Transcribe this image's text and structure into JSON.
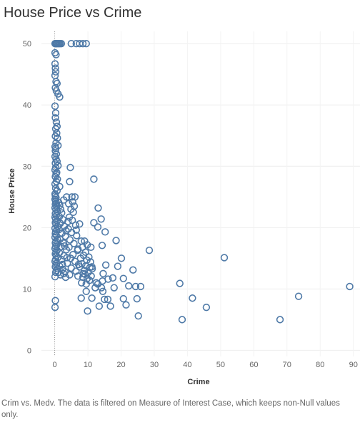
{
  "chart_data": {
    "type": "scatter",
    "title": "House Price vs Crime",
    "xlabel": "Crime",
    "ylabel": "House Price",
    "xlim": [
      -4,
      92
    ],
    "ylim": [
      -1,
      52
    ],
    "x_ticks": [
      0,
      10,
      20,
      30,
      40,
      50,
      60,
      70,
      80,
      90
    ],
    "y_ticks": [
      0,
      10,
      20,
      30,
      40,
      50
    ],
    "grid": true,
    "zero_line_x": true,
    "marker": "hollow-circle",
    "color": "#4E79A7",
    "points": [
      [
        0.1,
        50
      ],
      [
        0.3,
        50
      ],
      [
        0.5,
        50
      ],
      [
        0.7,
        50
      ],
      [
        1.0,
        50
      ],
      [
        1.3,
        50
      ],
      [
        1.6,
        50
      ],
      [
        2.0,
        50
      ],
      [
        5.0,
        50
      ],
      [
        6.5,
        50
      ],
      [
        7.5,
        50
      ],
      [
        8.5,
        50
      ],
      [
        9.5,
        50
      ],
      [
        0.1,
        48.5
      ],
      [
        0.4,
        48.2
      ],
      [
        0.1,
        46.7
      ],
      [
        0.2,
        46.0
      ],
      [
        0.3,
        45.4
      ],
      [
        0.1,
        44.8
      ],
      [
        0.4,
        43.8
      ],
      [
        0.7,
        43.5
      ],
      [
        0.2,
        42.8
      ],
      [
        0.5,
        42.3
      ],
      [
        1.0,
        41.8
      ],
      [
        1.5,
        41.3
      ],
      [
        0.1,
        39.8
      ],
      [
        0.3,
        38.7
      ],
      [
        0.2,
        37.9
      ],
      [
        0.5,
        37.2
      ],
      [
        0.7,
        36.5
      ],
      [
        0.3,
        36.1
      ],
      [
        0.6,
        35.4
      ],
      [
        0.2,
        34.9
      ],
      [
        0.8,
        34.6
      ],
      [
        0.4,
        33.8
      ],
      [
        1.0,
        33.4
      ],
      [
        0.1,
        33.2
      ],
      [
        0.3,
        32.9
      ],
      [
        0.2,
        32.5
      ],
      [
        0.5,
        32.0
      ],
      [
        0.1,
        31.6
      ],
      [
        0.4,
        31.2
      ],
      [
        0.7,
        30.8
      ],
      [
        0.2,
        30.5
      ],
      [
        1.0,
        30.1
      ],
      [
        0.3,
        29.8
      ],
      [
        0.1,
        29.4
      ],
      [
        0.6,
        29.0
      ],
      [
        0.4,
        28.7
      ],
      [
        0.2,
        28.3
      ],
      [
        0.8,
        27.9
      ],
      [
        0.5,
        27.5
      ],
      [
        0.1,
        27.1
      ],
      [
        1.5,
        26.7
      ],
      [
        0.3,
        26.4
      ],
      [
        0.7,
        26.0
      ],
      [
        4.7,
        29.8
      ],
      [
        4.5,
        27.5
      ],
      [
        11.8,
        27.9
      ],
      [
        5.2,
        25.0
      ],
      [
        6.1,
        25.0
      ],
      [
        3.6,
        25.0
      ],
      [
        2.7,
        24.5
      ],
      [
        0.1,
        25.5
      ],
      [
        0.2,
        25.2
      ],
      [
        0.4,
        24.9
      ],
      [
        0.1,
        24.6
      ],
      [
        0.3,
        24.3
      ],
      [
        0.5,
        24.0
      ],
      [
        0.2,
        23.8
      ],
      [
        0.6,
        23.5
      ],
      [
        0.1,
        23.2
      ],
      [
        0.4,
        22.9
      ],
      [
        0.8,
        22.6
      ],
      [
        0.2,
        22.3
      ],
      [
        0.5,
        22.0
      ],
      [
        0.1,
        21.7
      ],
      [
        0.3,
        21.4
      ],
      [
        0.7,
        21.1
      ],
      [
        0.2,
        20.8
      ],
      [
        0.4,
        20.5
      ],
      [
        0.9,
        20.2
      ],
      [
        0.1,
        19.9
      ],
      [
        0.6,
        19.6
      ],
      [
        0.3,
        19.3
      ],
      [
        0.2,
        19.0
      ],
      [
        0.5,
        18.7
      ],
      [
        0.1,
        18.4
      ],
      [
        0.8,
        18.1
      ],
      [
        0.4,
        17.8
      ],
      [
        0.2,
        17.5
      ],
      [
        0.6,
        17.2
      ],
      [
        0.3,
        16.9
      ],
      [
        0.1,
        16.6
      ],
      [
        0.7,
        16.3
      ],
      [
        0.4,
        16.0
      ],
      [
        0.2,
        15.7
      ],
      [
        0.5,
        15.4
      ],
      [
        0.9,
        15.1
      ],
      [
        0.3,
        14.8
      ],
      [
        0.1,
        14.5
      ],
      [
        0.6,
        14.2
      ],
      [
        0.4,
        13.9
      ],
      [
        0.2,
        13.6
      ],
      [
        0.8,
        13.3
      ],
      [
        0.5,
        13.0
      ],
      [
        1.1,
        12.7
      ],
      [
        1.2,
        24.1
      ],
      [
        1.5,
        23.6
      ],
      [
        1.8,
        23.0
      ],
      [
        2.1,
        22.4
      ],
      [
        1.4,
        21.8
      ],
      [
        2.5,
        21.3
      ],
      [
        1.7,
        20.7
      ],
      [
        2.9,
        20.2
      ],
      [
        1.3,
        19.7
      ],
      [
        2.2,
        19.1
      ],
      [
        3.2,
        18.6
      ],
      [
        1.6,
        18.1
      ],
      [
        2.6,
        17.5
      ],
      [
        1.9,
        16.9
      ],
      [
        3.5,
        16.4
      ],
      [
        1.4,
        15.9
      ],
      [
        2.8,
        15.4
      ],
      [
        2.0,
        14.8
      ],
      [
        3.8,
        14.2
      ],
      [
        1.5,
        13.7
      ],
      [
        2.4,
        13.2
      ],
      [
        3.1,
        12.8
      ],
      [
        1.8,
        12.3
      ],
      [
        4.2,
        23.9
      ],
      [
        4.9,
        23.0
      ],
      [
        5.6,
        22.5
      ],
      [
        4.4,
        21.7
      ],
      [
        5.3,
        21.2
      ],
      [
        6.3,
        20.4
      ],
      [
        4.1,
        19.8
      ],
      [
        5.1,
        19.2
      ],
      [
        6.6,
        18.7
      ],
      [
        4.6,
        18.0
      ],
      [
        5.8,
        17.4
      ],
      [
        4.3,
        16.8
      ],
      [
        6.9,
        16.3
      ],
      [
        5.5,
        15.6
      ],
      [
        4.8,
        15.0
      ],
      [
        6.1,
        14.5
      ],
      [
        7.2,
        14.0
      ],
      [
        5.0,
        13.4
      ],
      [
        6.4,
        12.9
      ],
      [
        4.5,
        12.3
      ],
      [
        7.5,
        13.6
      ],
      [
        7.0,
        12.1
      ],
      [
        5.4,
        24.2
      ],
      [
        5.9,
        23.5
      ],
      [
        4.0,
        21.0
      ],
      [
        3.4,
        19.5
      ],
      [
        3.0,
        17.0
      ],
      [
        3.7,
        15.1
      ],
      [
        2.3,
        14.0
      ],
      [
        2.7,
        12.5
      ],
      [
        3.3,
        11.9
      ],
      [
        7.5,
        20.6
      ],
      [
        6.5,
        19.6
      ],
      [
        8.0,
        17.8
      ],
      [
        9.0,
        17.8
      ],
      [
        9.8,
        17.2
      ],
      [
        8.4,
        16.8
      ],
      [
        7.0,
        16.5
      ],
      [
        9.3,
        16.0
      ],
      [
        8.7,
        15.5
      ],
      [
        10.3,
        15.2
      ],
      [
        7.8,
        15.0
      ],
      [
        9.7,
        14.7
      ],
      [
        10.8,
        14.4
      ],
      [
        8.2,
        14.1
      ],
      [
        9.4,
        13.8
      ],
      [
        10.6,
        13.5
      ],
      [
        11.3,
        13.3
      ],
      [
        8.9,
        13.0
      ],
      [
        10.1,
        12.7
      ],
      [
        9.1,
        12.4
      ],
      [
        11.0,
        12.1
      ],
      [
        8.5,
        11.9
      ],
      [
        9.8,
        11.7
      ],
      [
        10.5,
        11.4
      ],
      [
        8.1,
        11.0
      ],
      [
        9.5,
        10.8
      ],
      [
        10.9,
        16.8
      ],
      [
        11.2,
        13.6
      ],
      [
        8.6,
        12.5
      ],
      [
        13.1,
        23.2
      ],
      [
        14.0,
        21.4
      ],
      [
        11.8,
        20.8
      ],
      [
        13.0,
        20.1
      ],
      [
        15.2,
        19.3
      ],
      [
        18.5,
        17.9
      ],
      [
        14.3,
        17.1
      ],
      [
        20.1,
        15.0
      ],
      [
        15.4,
        13.9
      ],
      [
        19.0,
        13.7
      ],
      [
        23.6,
        13.1
      ],
      [
        16.1,
        11.6
      ],
      [
        20.7,
        11.7
      ],
      [
        14.4,
        11.3
      ],
      [
        22.3,
        10.5
      ],
      [
        24.4,
        10.4
      ],
      [
        25.9,
        10.4
      ],
      [
        12.2,
        10.2
      ],
      [
        14.1,
        10.2
      ],
      [
        17.9,
        10.2
      ],
      [
        14.5,
        9.6
      ],
      [
        9.5,
        9.6
      ],
      [
        11.2,
        8.5
      ],
      [
        16.0,
        8.3
      ],
      [
        20.7,
        8.4
      ],
      [
        24.8,
        8.4
      ],
      [
        13.4,
        7.2
      ],
      [
        16.8,
        7.2
      ],
      [
        21.5,
        7.4
      ],
      [
        8.0,
        8.5
      ],
      [
        15.0,
        8.3
      ],
      [
        9.9,
        6.4
      ],
      [
        25.2,
        5.6
      ],
      [
        12.5,
        11.0
      ],
      [
        17.5,
        11.8
      ],
      [
        14.6,
        12.5
      ],
      [
        13.0,
        10.8
      ],
      [
        28.5,
        16.3
      ],
      [
        51.1,
        15.1
      ],
      [
        37.7,
        10.9
      ],
      [
        41.5,
        8.5
      ],
      [
        45.7,
        7.0
      ],
      [
        38.4,
        5.0
      ],
      [
        67.9,
        5.0
      ],
      [
        73.5,
        8.8
      ],
      [
        88.9,
        10.4
      ],
      [
        0.2,
        8.1
      ],
      [
        0.1,
        7.0
      ],
      [
        0.1,
        12.0
      ],
      [
        0.3,
        12.7
      ]
    ]
  },
  "footnote": "Crim vs. Medv.  The data is filtered on Measure of Interest Case, which keeps non-Null values only."
}
